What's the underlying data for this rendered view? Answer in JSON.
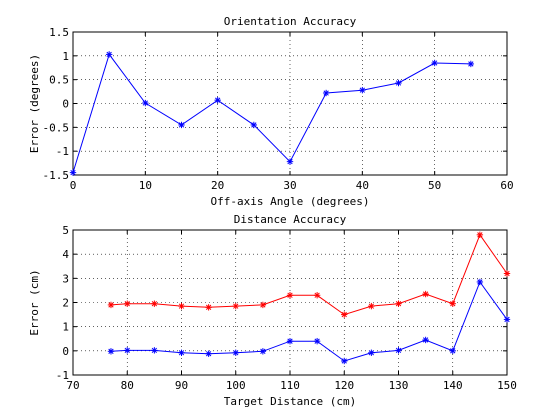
{
  "chart_data": [
    {
      "type": "line",
      "title": "Orientation Accuracy",
      "xlabel": "Off-axis Angle (degrees)",
      "ylabel": "Error (degrees)",
      "xlim": [
        0,
        60
      ],
      "ylim": [
        -1.5,
        1.5
      ],
      "xticks": [
        0,
        10,
        20,
        30,
        40,
        50,
        60
      ],
      "xticklabels": [
        "0",
        "10",
        "20",
        "30",
        "40",
        "50",
        "60"
      ],
      "yticks": [
        -1.5,
        -1,
        -0.5,
        0,
        0.5,
        1,
        1.5
      ],
      "yticklabels": [
        "-1.5",
        "-1",
        "-0.5",
        "0",
        "0.5",
        "1",
        "1.5"
      ],
      "grid": true,
      "series": [
        {
          "color": "#0000ff",
          "marker": "star",
          "x": [
            0,
            5,
            10,
            15,
            20,
            25,
            30,
            35,
            40,
            45,
            50,
            55
          ],
          "y": [
            -1.45,
            1.03,
            0.01,
            -0.45,
            0.07,
            -0.45,
            -1.22,
            0.22,
            0.28,
            0.43,
            0.85,
            0.83
          ]
        }
      ]
    },
    {
      "type": "line",
      "title": "Distance Accuracy",
      "xlabel": "Target Distance (cm)",
      "ylabel": "Error (cm)",
      "xlim": [
        70,
        150
      ],
      "ylim": [
        -1,
        5
      ],
      "xticks": [
        70,
        80,
        90,
        100,
        110,
        120,
        130,
        140,
        150
      ],
      "xticklabels": [
        "70",
        "80",
        "90",
        "100",
        "110",
        "120",
        "130",
        "140",
        "150"
      ],
      "yticks": [
        -1,
        0,
        1,
        2,
        3,
        4,
        5
      ],
      "yticklabels": [
        "-1",
        "0",
        "1",
        "2",
        "3",
        "4",
        "5"
      ],
      "grid": true,
      "series": [
        {
          "color": "#ff0000",
          "marker": "star",
          "x": [
            77,
            80,
            85,
            90,
            95,
            100,
            105,
            110,
            115,
            120,
            125,
            130,
            135,
            140,
            145,
            150
          ],
          "y": [
            1.9,
            1.95,
            1.95,
            1.85,
            1.8,
            1.85,
            1.9,
            2.3,
            2.3,
            1.5,
            1.85,
            1.95,
            2.35,
            1.95,
            4.8,
            3.2
          ]
        },
        {
          "color": "#0000ff",
          "marker": "star",
          "x": [
            77,
            80,
            85,
            90,
            95,
            100,
            105,
            110,
            115,
            120,
            125,
            130,
            135,
            140,
            145,
            150
          ],
          "y": [
            -0.02,
            0.02,
            0.02,
            -0.08,
            -0.12,
            -0.08,
            -0.02,
            0.4,
            0.4,
            -0.42,
            -0.08,
            0.02,
            0.45,
            0.0,
            2.85,
            1.3
          ]
        }
      ]
    }
  ]
}
